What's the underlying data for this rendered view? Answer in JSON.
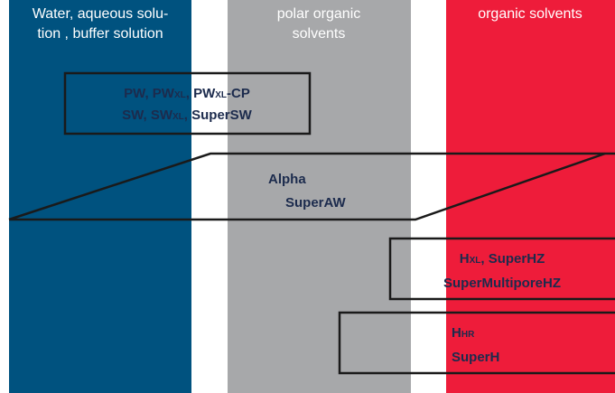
{
  "columns": [
    {
      "lines": [
        "Water, aqueous solu-",
        "tion , buffer solution"
      ]
    },
    {
      "lines": [
        "polar organic",
        "solvents"
      ]
    },
    {
      "lines": [
        "organic solvents"
      ]
    }
  ],
  "groups": [
    {
      "lines": [
        [
          {
            "text": "PW, PW"
          },
          {
            "text": "XL",
            "small": true
          },
          {
            "text": ", PW"
          },
          {
            "text": "XL",
            "small": true
          },
          {
            "text": "-CP"
          }
        ],
        [
          {
            "text": "SW, SW"
          },
          {
            "text": "XL",
            "small": true
          },
          {
            "text": ", SuperSW"
          }
        ]
      ]
    },
    {
      "lines": [
        [
          {
            "text": "Alpha"
          }
        ],
        [
          {
            "text": "SuperAW"
          }
        ]
      ]
    },
    {
      "lines": [
        [
          {
            "text": "H"
          },
          {
            "text": "XL",
            "small": true
          },
          {
            "text": ", SuperHZ"
          }
        ],
        [
          {
            "text": "SuperMultiporeHZ"
          }
        ]
      ]
    },
    {
      "lines": [
        [
          {
            "text": "H"
          },
          {
            "text": "HR",
            "small": true
          }
        ],
        [
          {
            "text": "SuperH"
          }
        ]
      ]
    }
  ]
}
